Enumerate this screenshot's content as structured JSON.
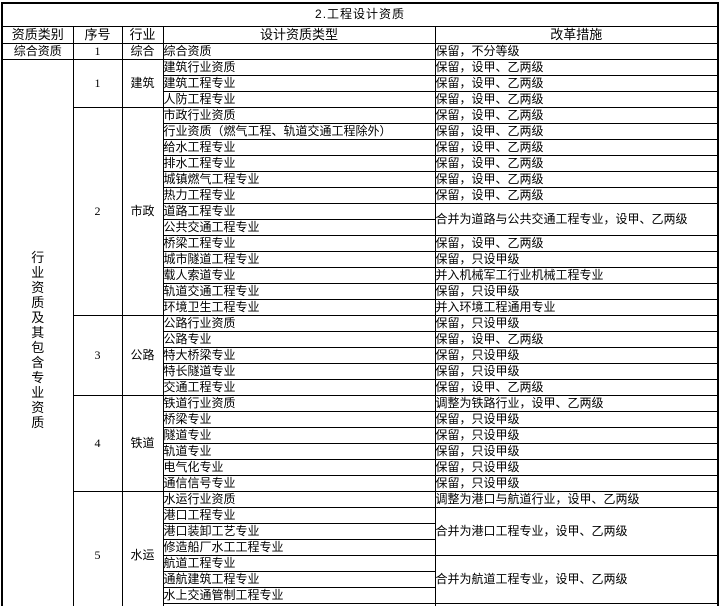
{
  "title": "2.工程设计资质",
  "columns": [
    "资质类别",
    "序号",
    "行业",
    "设计资质类型",
    "改革措施"
  ],
  "rows": [
    {
      "cat": "综合资质",
      "catSpan": 1,
      "no": "1",
      "noSpan": 1,
      "ind": "综合",
      "indSpan": 1,
      "type": "综合资质",
      "meas": "保留，不分等级",
      "measSpan": 1
    },
    {
      "cat": "行业资质及其包含专业资质",
      "catSpan": 35,
      "catVertical": true,
      "no": "1",
      "noSpan": 3,
      "ind": "建筑",
      "indSpan": 3,
      "type": "建筑行业资质",
      "meas": "保留，设甲、乙两级",
      "measSpan": 1
    },
    {
      "type": "建筑工程专业",
      "meas": "保留，设甲、乙两级",
      "measSpan": 1
    },
    {
      "type": "人防工程专业",
      "meas": "保留，设甲、乙两级",
      "measSpan": 1
    },
    {
      "no": "2",
      "noSpan": 13,
      "ind": "市政",
      "indSpan": 13,
      "type": "市政行业资质",
      "meas": "保留，设甲、乙两级",
      "measSpan": 1
    },
    {
      "type": "行业资质（燃气工程、轨道交通工程除外）",
      "meas": "保留，设甲、乙两级",
      "measSpan": 1
    },
    {
      "type": "给水工程专业",
      "meas": "保留，设甲、乙两级",
      "measSpan": 1
    },
    {
      "type": "排水工程专业",
      "meas": "保留，设甲、乙两级",
      "measSpan": 1
    },
    {
      "type": "城镇燃气工程专业",
      "meas": "保留，设甲、乙两级",
      "measSpan": 1
    },
    {
      "type": "热力工程专业",
      "meas": "保留，设甲、乙两级",
      "measSpan": 1
    },
    {
      "type": "道路工程专业",
      "meas": "合并为道路与公共交通工程专业，设甲、乙两级",
      "measSpan": 2
    },
    {
      "type": "公共交通工程专业"
    },
    {
      "type": "桥梁工程专业",
      "meas": "保留，设甲、乙两级",
      "measSpan": 1
    },
    {
      "type": "城市隧道工程专业",
      "meas": "保留，只设甲级",
      "measSpan": 1
    },
    {
      "type": "载人索道专业",
      "meas": "并入机械军工行业机械工程专业",
      "measSpan": 1
    },
    {
      "type": "轨道交通工程专业",
      "meas": "保留，只设甲级",
      "measSpan": 1
    },
    {
      "type": "环境卫生工程专业",
      "meas": "并入环境工程通用专业",
      "measSpan": 1
    },
    {
      "no": "3",
      "noSpan": 5,
      "ind": "公路",
      "indSpan": 5,
      "type": "公路行业资质",
      "meas": "保留，只设甲级",
      "measSpan": 1
    },
    {
      "type": "公路专业",
      "meas": "保留，设甲、乙两级",
      "measSpan": 1
    },
    {
      "type": "特大桥梁专业",
      "meas": "保留，只设甲级",
      "measSpan": 1
    },
    {
      "type": "特长隧道专业",
      "meas": "保留，只设甲级",
      "measSpan": 1
    },
    {
      "type": "交通工程专业",
      "meas": "保留，设甲、乙两级",
      "measSpan": 1
    },
    {
      "no": "4",
      "noSpan": 6,
      "ind": "铁道",
      "indSpan": 6,
      "type": "铁道行业资质",
      "meas": "调整为铁路行业，设甲、乙两级",
      "measSpan": 1
    },
    {
      "type": "桥梁专业",
      "meas": "保留，只设甲级",
      "measSpan": 1
    },
    {
      "type": "隧道专业",
      "meas": "保留，只设甲级",
      "measSpan": 1
    },
    {
      "type": "轨道专业",
      "meas": "保留，只设甲级",
      "measSpan": 1
    },
    {
      "type": "电气化专业",
      "meas": "保留，只设甲级",
      "measSpan": 1
    },
    {
      "type": "通信信号专业",
      "meas": "保留，只设甲级",
      "measSpan": 1
    },
    {
      "no": "5",
      "noSpan": 8,
      "ind": "水运",
      "indSpan": 8,
      "type": "水运行业资质",
      "meas": "调整为港口与航道行业，设甲、乙两级",
      "measSpan": 1
    },
    {
      "type": "港口工程专业",
      "meas": "合并为港口工程专业，设甲、乙两级",
      "measSpan": 3
    },
    {
      "type": "港口装卸工艺专业"
    },
    {
      "type": "修造船厂水工工程专业"
    },
    {
      "type": "航道工程专业",
      "meas": "合并为航道工程专业，设甲、乙两级",
      "measSpan": 3
    },
    {
      "type": "通航建筑工程专业"
    },
    {
      "type": "水上交通管制工程专业"
    },
    {
      "type": "",
      "meas": "",
      "measSpan": 1
    }
  ]
}
